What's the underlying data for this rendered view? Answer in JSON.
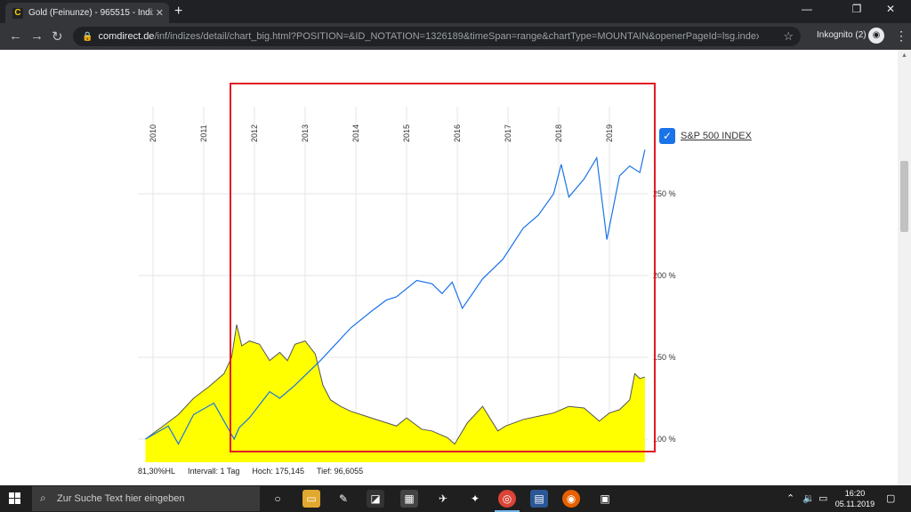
{
  "browser": {
    "tab_title": "Gold (Feinunze) - 965515 - Indiz",
    "tab_favicon_letter": "C",
    "url_host": "comdirect.de",
    "url_path": "/inf/indizes/detail/chart_big.html?POSITION=&ID_NOTATION=1326189&timeSpan=range&chartType=MOUNTAIN&openerPageId=lsg.index.detail.cha...",
    "profile_label": "Inkognito (2)"
  },
  "chart_data": {
    "type": "area",
    "x_ticks": [
      "2010",
      "2011",
      "2012",
      "2013",
      "2014",
      "2015",
      "2016",
      "2017",
      "2018",
      "2019"
    ],
    "y_ticks": [
      "250 %",
      "200 %",
      "150 %",
      "100 %"
    ],
    "ylim": [
      95,
      275
    ],
    "grid": true,
    "legend_position": "top-right",
    "series": [
      {
        "name": "S&P 500 INDEX",
        "color": "#1a73e8",
        "type": "line",
        "x": [
          2009.85,
          2010.3,
          2010.5,
          2010.8,
          2011.2,
          2011.6,
          2011.7,
          2011.9,
          2012.3,
          2012.5,
          2012.8,
          2013.0,
          2013.3,
          2013.6,
          2013.9,
          2014.3,
          2014.6,
          2014.8,
          2015.2,
          2015.5,
          2015.7,
          2015.9,
          2016.1,
          2016.5,
          2016.9,
          2017.3,
          2017.6,
          2017.9,
          2018.05,
          2018.2,
          2018.5,
          2018.75,
          2018.95,
          2019.2,
          2019.4,
          2019.6,
          2019.7
        ],
        "values": [
          100,
          108,
          97,
          115,
          122,
          100,
          107,
          113,
          129,
          125,
          133,
          139,
          148,
          158,
          168,
          178,
          185,
          187,
          197,
          195,
          189,
          196,
          180,
          198,
          210,
          229,
          237,
          250,
          268,
          248,
          259,
          272,
          222,
          261,
          267,
          263,
          277
        ]
      },
      {
        "name": "Gold",
        "color": "#ffff00",
        "type": "area",
        "x": [
          2009.85,
          2010.2,
          2010.5,
          2010.8,
          2011.1,
          2011.4,
          2011.55,
          2011.65,
          2011.75,
          2011.9,
          2012.1,
          2012.3,
          2012.5,
          2012.65,
          2012.8,
          2013.0,
          2013.2,
          2013.35,
          2013.5,
          2013.7,
          2013.9,
          2014.2,
          2014.5,
          2014.8,
          2015.0,
          2015.3,
          2015.5,
          2015.8,
          2015.95,
          2016.2,
          2016.5,
          2016.8,
          2016.95,
          2017.3,
          2017.6,
          2017.9,
          2018.2,
          2018.5,
          2018.8,
          2019.0,
          2019.2,
          2019.4,
          2019.5,
          2019.6,
          2019.7
        ],
        "values": [
          100,
          108,
          115,
          125,
          132,
          140,
          150,
          170,
          157,
          160,
          158,
          148,
          153,
          148,
          158,
          160,
          152,
          133,
          124,
          120,
          117,
          114,
          111,
          108,
          113,
          106,
          105,
          101,
          97,
          110,
          120,
          105,
          108,
          112,
          114,
          116,
          120,
          119,
          111,
          116,
          118,
          124,
          140,
          137,
          138
        ]
      }
    ]
  },
  "footer": {
    "change": "81,30%HL",
    "interval": "Intervall: 1 Tag",
    "high": "Hoch:  175,145",
    "low": "Tief:  96,6055"
  },
  "taskbar": {
    "search_placeholder": "Zur Suche Text hier eingeben",
    "time": "16:20",
    "date": "05.11.2019"
  },
  "colors": {
    "highlight_box": "#e31b23",
    "grid": "#e6e6e6"
  }
}
